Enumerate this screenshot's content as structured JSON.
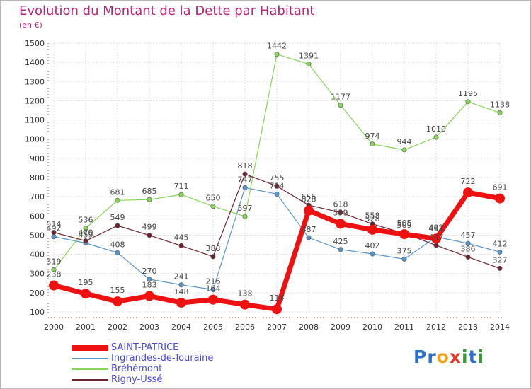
{
  "title": "Evolution du Montant de la Dette par Habitant",
  "unit_label": "(en €)",
  "logo": {
    "text": "Proxiti",
    "letters": [
      {
        "ch": "P",
        "color": "#2e6fc7"
      },
      {
        "ch": "r",
        "color": "#2e6fc7"
      },
      {
        "ch": "o",
        "color": "#f0a21a"
      },
      {
        "ch": "x",
        "color": "#e03a2e"
      },
      {
        "ch": "i",
        "color": "#3a9a3a"
      },
      {
        "ch": "t",
        "color": "#2e6fc7"
      },
      {
        "ch": "i",
        "color": "#3a9a3a"
      }
    ]
  },
  "chart_data": {
    "type": "line",
    "title": "Evolution du Montant de la Dette par Habitant",
    "ylabel": "(en €)",
    "xlabel": "",
    "x": [
      "2000",
      "2001",
      "2002",
      "2003",
      "2004",
      "2005",
      "2006",
      "2007",
      "2008",
      "2009",
      "2010",
      "2011",
      "2012",
      "2013",
      "2014"
    ],
    "ylim": [
      100,
      1500
    ],
    "yticks": [
      100,
      200,
      300,
      400,
      500,
      600,
      700,
      800,
      900,
      1000,
      1100,
      1200,
      1300,
      1400,
      1500
    ],
    "grid": true,
    "legend_position": "bottom-left",
    "series": [
      {
        "name": "SAINT-PATRICE",
        "color": "#ee1111",
        "values": [
          238,
          195,
          155,
          183,
          148,
          164,
          138,
          114,
          628,
          559,
          528,
          505,
          482,
          722,
          691
        ],
        "labels": [
          "238",
          "195",
          "155",
          "183",
          "148",
          "164",
          "138",
          "114",
          "628",
          "559",
          "528",
          "505",
          "482",
          "722",
          "691"
        ]
      },
      {
        "name": "Ingrandes-de-Touraine",
        "color": "#5a95c8",
        "values": [
          492,
          459,
          408,
          270,
          241,
          216,
          747,
          714,
          487,
          425,
          402,
          375,
          491,
          457,
          412
        ],
        "labels": [
          "492",
          "459",
          "408",
          "270",
          "241",
          "216",
          "747",
          "714",
          "487",
          "425",
          "402",
          "375",
          "491",
          "457",
          "412"
        ]
      },
      {
        "name": "Bréhémont",
        "color": "#88d45a",
        "values": [
          319,
          536,
          681,
          685,
          711,
          650,
          597,
          1442,
          1391,
          1177,
          974,
          944,
          1010,
          1195,
          1138
        ],
        "labels": [
          "319",
          "536",
          "681",
          "685",
          "711",
          "650",
          "597",
          "1442",
          "1391",
          "1177",
          "974",
          "944",
          "1010",
          "1195",
          "1138"
        ]
      },
      {
        "name": "Rigny-Ussé",
        "color": "#6e2430",
        "values": [
          514,
          470,
          549,
          499,
          445,
          388,
          818,
          755,
          656,
          618,
          558,
          509,
          447,
          386,
          327
        ],
        "labels": [
          "514",
          "470",
          "549",
          "499",
          "445",
          "388",
          "818",
          "755",
          "656",
          "618",
          "558",
          "509",
          "447",
          "386",
          "327"
        ]
      }
    ]
  }
}
